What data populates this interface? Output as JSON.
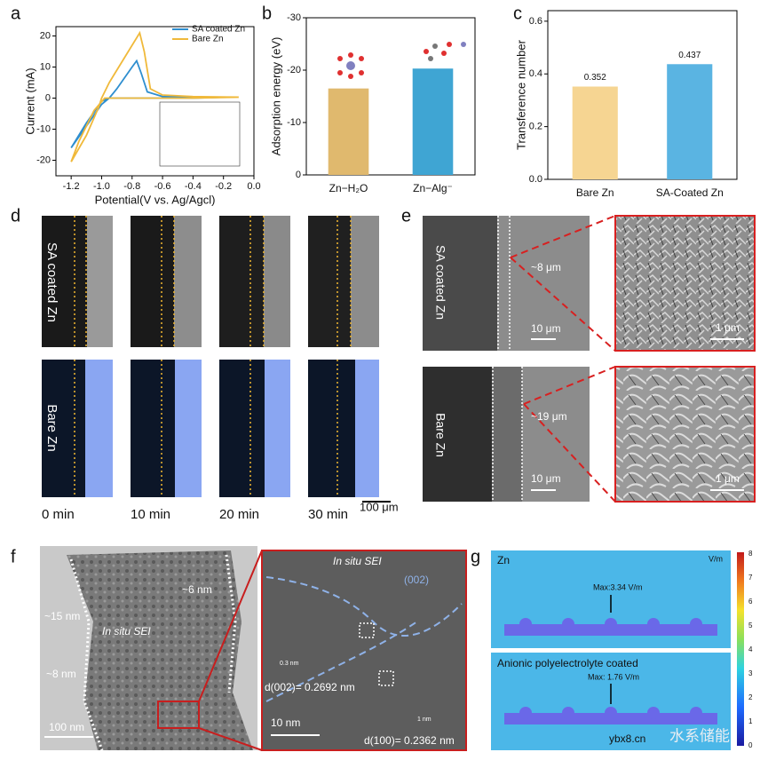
{
  "chart_data": [
    {
      "type": "line",
      "xlabel": "Potential(V vs. Ag/Agcl)",
      "ylabel": "Current (mA)",
      "xlim": [
        -1.3,
        0
      ],
      "ylim": [
        -25,
        23
      ],
      "xticks": [
        -1.2,
        {
          "value": -1,
          "label": "-1.0"
        },
        -0.8,
        -0.6,
        -0.4,
        -0.2,
        {
          "value": 0,
          "label": "0.0"
        }
      ],
      "yticks": [
        -20,
        -10,
        0,
        10,
        20
      ],
      "legend": "upper right",
      "series": [
        {
          "name": "SA coated Zn",
          "color": "#2e8ecf",
          "x": [
            -1.2,
            -1.1,
            -1.0,
            -0.95,
            -0.9,
            -0.8,
            -0.77,
            -0.74,
            -0.7,
            -0.6,
            -0.4,
            -0.2,
            -0.4,
            -0.8,
            -0.95,
            -1.0,
            -1.1,
            -1.2
          ],
          "values": [
            -16,
            -9,
            -2,
            0,
            3,
            10,
            12,
            8,
            2,
            0.5,
            0.3,
            0.3,
            0,
            0,
            0,
            -1,
            -8,
            -16
          ]
        },
        {
          "name": "Bare Zn",
          "color": "#f0b93a",
          "x": [
            -1.2,
            -1.1,
            -1.02,
            -1.0,
            -0.95,
            -0.85,
            -0.75,
            -0.72,
            -0.68,
            -0.6,
            -0.4,
            -0.1,
            -0.4,
            -0.8,
            -0.98,
            -1.05,
            -1.15,
            -1.2
          ],
          "values": [
            -20.5,
            -12,
            -3,
            0,
            5,
            13,
            21,
            15,
            3,
            1,
            0.5,
            0.3,
            0,
            0,
            0,
            -4,
            -14,
            -20.5
          ]
        }
      ]
    },
    {
      "type": "bar",
      "ylabel": "Adsorption energy (eV)",
      "categories": [
        "Zn−H₂O",
        "Zn−Alg⁻"
      ],
      "values": [
        -16.5,
        -20.3
      ],
      "colors": [
        "#e0b96e",
        "#3fa5d3"
      ],
      "ylim": [
        0,
        -30
      ],
      "yticks": [
        0,
        -10,
        -20,
        -30
      ]
    },
    {
      "type": "bar",
      "ylabel": "Transference number",
      "categories": [
        "Bare Zn",
        "SA-Coated Zn"
      ],
      "values": [
        0.352,
        0.437
      ],
      "colors": [
        "#f6d592",
        "#5ab4e2"
      ],
      "ylim": [
        0,
        0.64
      ],
      "yticks": [
        {
          "value": 0,
          "label": "0.0"
        },
        0.2,
        0.4,
        0.6
      ],
      "data_labels": true
    }
  ],
  "panel_labels": [
    "a",
    "b",
    "c",
    "d",
    "e",
    "f",
    "g"
  ],
  "d": {
    "rows": [
      "SA coated Zn",
      "Bare Zn"
    ],
    "times": [
      "0 min",
      "10 min",
      "20 min",
      "30 min"
    ],
    "scale": "100 μm"
  },
  "e": {
    "rows": [
      "SA coated Zn",
      "Bare Zn"
    ],
    "thickness": [
      "~8 μm",
      "~19 μm"
    ],
    "scale": [
      "10 μm",
      "10 μm"
    ],
    "zoom_scale": [
      "1 μm",
      "1 μm"
    ]
  },
  "f": {
    "left": [
      "~15 nm",
      "~6 nm",
      "In situ SEI",
      "~8 nm",
      "100 nm"
    ],
    "right": [
      "In situ SEI",
      "(002)",
      "0.3 nm",
      "d(002)= 0.2692 nm",
      "1 nm",
      "d(100)= 0.2362 nm",
      "10 nm"
    ]
  },
  "g": {
    "top": [
      "Zn",
      "V/m",
      "Max:3.34 V/m"
    ],
    "bottom": [
      "Anionic polyelectrolyte coated",
      "Max: 1.76 V/m"
    ],
    "colorbar": [
      "8",
      "7",
      "6",
      "5",
      "4",
      "3",
      "2",
      "1",
      "0"
    ]
  },
  "watermark": [
    "ybx8.cn",
    "水系储能"
  ]
}
